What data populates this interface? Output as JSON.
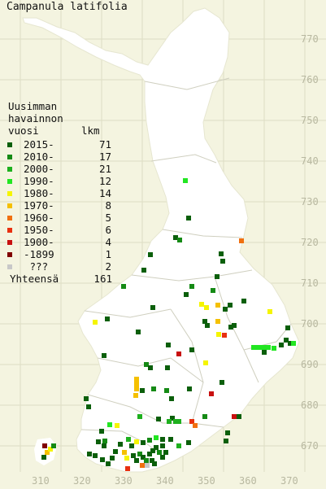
{
  "title": "Campanula latifolia",
  "legend": {
    "heading_line1": "Uusimman",
    "heading_line2": "havainnon",
    "heading_col1": "vuosi",
    "heading_col2": "lkm",
    "rows": [
      {
        "label": "2015-",
        "count": "71",
        "color": "#0b5f0b"
      },
      {
        "label": "2010-",
        "count": "17",
        "color": "#158a15"
      },
      {
        "label": "2000-",
        "count": "21",
        "color": "#1eb01e"
      },
      {
        "label": "1990-",
        "count": "12",
        "color": "#22e622"
      },
      {
        "label": "1980-",
        "count": "14",
        "color": "#f5f500"
      },
      {
        "label": "1970-",
        "count": "8",
        "color": "#f5c000"
      },
      {
        "label": "1960-",
        "count": "5",
        "color": "#f07010"
      },
      {
        "label": "1950-",
        "count": "6",
        "color": "#e83010"
      },
      {
        "label": "1900-",
        "count": "4",
        "color": "#c81010"
      },
      {
        "label": "-1899",
        "count": "1",
        "color": "#800000"
      },
      {
        "label": " ???",
        "count": "2",
        "color": "#c8c8c8"
      }
    ],
    "total_label": "Yhteensä",
    "total_count": "161"
  },
  "y_ticks": [
    "770",
    "760",
    "750",
    "740",
    "730",
    "720",
    "710",
    "700",
    "690",
    "680",
    "670"
  ],
  "x_ticks": [
    "310",
    "320",
    "330",
    "340",
    "350",
    "360",
    "370"
  ],
  "colors": {
    "background": "#f4f4e0",
    "land": "#ffffff",
    "grid": "#ddddc4",
    "borders": "#c8c8b8"
  }
}
